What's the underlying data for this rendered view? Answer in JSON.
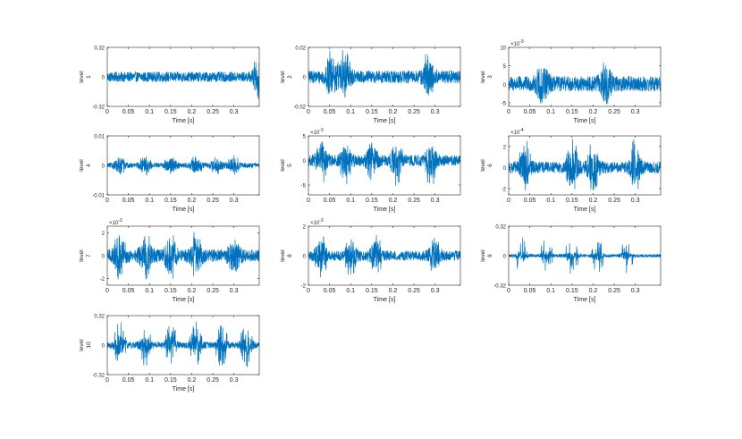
{
  "chart_data": [
    {
      "type": "line",
      "ylabel": "level\n1",
      "xlabel": "Time [s]",
      "xlim": [
        0,
        0.36
      ],
      "ylim": [
        -0.32,
        0.32
      ],
      "exponent": "",
      "xticks": [
        "0",
        "0.05",
        "0.1",
        "0.15",
        "0.2",
        "0.25",
        "0.3"
      ],
      "yticks": [
        "0.32",
        "0",
        "-0.32"
      ],
      "ytick_values": [
        0.32,
        0,
        -0.32
      ],
      "series": [
        {
          "color": "#0072BD",
          "envelope_y": [
            -0.1,
            0.1
          ],
          "burst_at": [
            0.36
          ],
          "burst_y": [
            -0.28,
            0.28
          ]
        }
      ]
    },
    {
      "type": "line",
      "ylabel": "level\n2",
      "xlabel": "Time [s]",
      "xlim": [
        0,
        0.36
      ],
      "ylim": [
        -0.02,
        0.02
      ],
      "exponent": "",
      "xticks": [
        "0",
        "0.05",
        "0.1",
        "0.15",
        "0.2",
        "0.25",
        "0.3"
      ],
      "yticks": [
        "0.02",
        "0",
        "-0.02"
      ],
      "ytick_values": [
        0.02,
        0,
        -0.02
      ],
      "series": [
        {
          "color": "#0072BD",
          "envelope_y": [
            -0.008,
            0.008
          ],
          "burst_at": [
            0.055,
            0.085,
            0.285
          ],
          "burst_y": [
            -0.016,
            0.02
          ]
        }
      ]
    },
    {
      "type": "line",
      "ylabel": "level\n3",
      "xlabel": "Time [s]",
      "xlim": [
        0,
        0.36
      ],
      "ylim": [
        -6,
        10
      ],
      "exponent": "×10^-3",
      "xticks": [
        "0",
        "0.05",
        "0.1",
        "0.15",
        "0.2",
        "0.25",
        "0.3"
      ],
      "yticks": [
        "10",
        "5",
        "0",
        "-5"
      ],
      "ytick_values": [
        10,
        5,
        0,
        -5
      ],
      "series": [
        {
          "color": "#0072BD",
          "envelope_y": [
            -3.5,
            4
          ],
          "burst_at": [
            0.08,
            0.23
          ],
          "burst_y": [
            -5.5,
            5.5
          ]
        }
      ]
    },
    {
      "type": "line",
      "ylabel": "level\n4",
      "xlabel": "Time [s]",
      "xlim": [
        0,
        0.36
      ],
      "ylim": [
        -0.01,
        0.01
      ],
      "exponent": "",
      "xticks": [
        "0",
        "0.05",
        "0.1",
        "0.15",
        "0.2",
        "0.25",
        "0.3"
      ],
      "yticks": [
        "0.01",
        "0",
        "-0.01"
      ],
      "ytick_values": [
        0.01,
        0,
        -0.01
      ],
      "series": [
        {
          "color": "#0072BD",
          "envelope_y": [
            -0.0015,
            0.0015
          ],
          "burst_at": [
            0.03,
            0.09,
            0.15,
            0.21,
            0.26,
            0.3
          ],
          "burst_y": [
            -0.0035,
            0.0035
          ]
        }
      ]
    },
    {
      "type": "line",
      "ylabel": "level\n5",
      "xlabel": "Time [s]",
      "xlim": [
        0,
        0.36
      ],
      "ylim": [
        -7,
        5
      ],
      "exponent": "×10^-3",
      "xticks": [
        "0",
        "0.05",
        "0.1",
        "0.15",
        "0.2",
        "0.25",
        "0.3"
      ],
      "yticks": [
        "5",
        "0",
        "-5"
      ],
      "ytick_values": [
        5,
        0,
        -5
      ],
      "series": [
        {
          "color": "#0072BD",
          "envelope_y": [
            -2,
            2
          ],
          "burst_at": [
            0.03,
            0.09,
            0.15,
            0.21,
            0.29
          ],
          "burst_y": [
            -5.5,
            4
          ]
        }
      ]
    },
    {
      "type": "line",
      "ylabel": "level\n6",
      "xlabel": "Time [s]",
      "xlim": [
        0,
        0.36
      ],
      "ylim": [
        -2.6,
        3
      ],
      "exponent": "×10^-4",
      "xticks": [
        "0",
        "0.05",
        "0.1",
        "0.15",
        "0.2",
        "0.25",
        "0.3"
      ],
      "yticks": [
        "2",
        "0",
        "-2"
      ],
      "ytick_values": [
        2,
        0,
        -2
      ],
      "series": [
        {
          "color": "#0072BD",
          "envelope_y": [
            -1,
            1
          ],
          "burst_at": [
            0.04,
            0.15,
            0.2,
            0.3
          ],
          "burst_y": [
            -2.5,
            2.8
          ]
        }
      ]
    },
    {
      "type": "line",
      "ylabel": "level\n7",
      "xlabel": "Time [s]",
      "xlim": [
        0,
        0.36
      ],
      "ylim": [
        -2.6,
        2.6
      ],
      "exponent": "×10^-3",
      "xticks": [
        "0",
        "0.05",
        "0.1",
        "0.15",
        "0.2",
        "0.25",
        "0.3"
      ],
      "yticks": [
        "2",
        "0",
        "-2"
      ],
      "ytick_values": [
        2,
        0,
        -2
      ],
      "series": [
        {
          "color": "#0072BD",
          "envelope_y": [
            -1,
            1
          ],
          "burst_at": [
            0.03,
            0.09,
            0.15,
            0.21,
            0.3
          ],
          "burst_y": [
            -2.2,
            2.4
          ]
        }
      ]
    },
    {
      "type": "line",
      "ylabel": "level\n8",
      "xlabel": "Time [s]",
      "xlim": [
        0,
        0.36
      ],
      "ylim": [
        -2,
        2
      ],
      "exponent": "×10^-3",
      "xticks": [
        "0",
        "0.05",
        "0.1",
        "0.15",
        "0.2",
        "0.25",
        "0.3"
      ],
      "yticks": [
        "2",
        "0",
        "-2"
      ],
      "ytick_values": [
        2,
        0,
        -2
      ],
      "series": [
        {
          "color": "#0072BD",
          "envelope_y": [
            -0.6,
            0.6
          ],
          "burst_at": [
            0.03,
            0.1,
            0.16,
            0.3
          ],
          "burst_y": [
            -1.5,
            1.5
          ]
        }
      ]
    },
    {
      "type": "line",
      "ylabel": "level\n9",
      "xlabel": "Time [s]",
      "xlim": [
        0,
        0.36
      ],
      "ylim": [
        -0.32,
        0.32
      ],
      "exponent": "",
      "xticks": [
        "0",
        "0.05",
        "0.1",
        "0.15",
        "0.2",
        "0.25",
        "0.3"
      ],
      "yticks": [
        "0.32",
        "0",
        "-0.32"
      ],
      "ytick_values": [
        0.32,
        0,
        -0.32
      ],
      "series": [
        {
          "color": "#0072BD",
          "envelope_y": [
            -0.03,
            0.03
          ],
          "burst_at": [
            0.03,
            0.09,
            0.15,
            0.21,
            0.28
          ],
          "burst_y": [
            -0.2,
            0.2
          ]
        }
      ]
    },
    {
      "type": "line",
      "ylabel": "level\n10",
      "xlabel": "Time [s]",
      "xlim": [
        0,
        0.36
      ],
      "ylim": [
        -0.32,
        0.32
      ],
      "exponent": "",
      "xticks": [
        "0",
        "0.05",
        "0.1",
        "0.15",
        "0.2",
        "0.25",
        "0.3"
      ],
      "yticks": [
        "0.32",
        "0",
        "-0.32"
      ],
      "ytick_values": [
        0.32,
        0,
        -0.32
      ],
      "series": [
        {
          "color": "#0072BD",
          "envelope_y": [
            -0.06,
            0.06
          ],
          "burst_at": [
            0.03,
            0.09,
            0.15,
            0.21,
            0.27,
            0.33
          ],
          "burst_y": [
            -0.24,
            0.26
          ]
        }
      ]
    }
  ]
}
